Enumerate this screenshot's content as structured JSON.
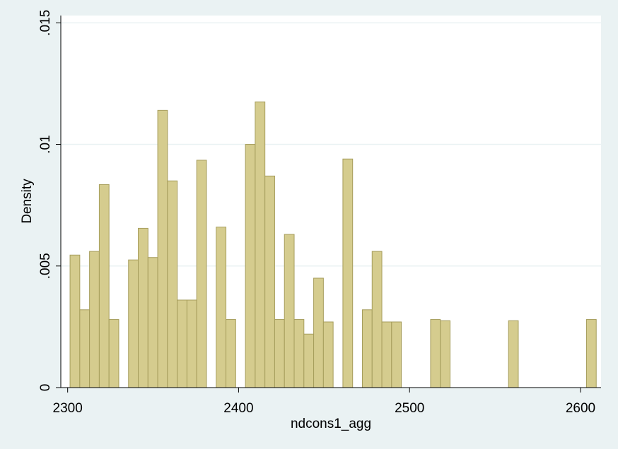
{
  "chart_data": {
    "type": "bar",
    "xlabel": "ndcons1_agg",
    "ylabel": "Density",
    "xlim": [
      2296,
      2612
    ],
    "ylim": [
      0,
      0.0153
    ],
    "grid": true,
    "x_ticks": [
      {
        "value": 2300,
        "label": "2300"
      },
      {
        "value": 2400,
        "label": "2400"
      },
      {
        "value": 2500,
        "label": "2500"
      },
      {
        "value": 2600,
        "label": "2600"
      }
    ],
    "y_ticks": [
      {
        "value": 0,
        "label": "0"
      },
      {
        "value": 0.005,
        "label": ".005"
      },
      {
        "value": 0.01,
        "label": ".01"
      },
      {
        "value": 0.015,
        "label": ".015"
      }
    ],
    "bin_width": 5.7,
    "bins": [
      {
        "start": 2301.4,
        "density": 0.00545
      },
      {
        "start": 2307.1,
        "density": 0.0032
      },
      {
        "start": 2312.8,
        "density": 0.0056
      },
      {
        "start": 2318.5,
        "density": 0.00835
      },
      {
        "start": 2324.2,
        "density": 0.0028
      },
      {
        "start": 2335.6,
        "density": 0.00525
      },
      {
        "start": 2341.3,
        "density": 0.00655
      },
      {
        "start": 2347.0,
        "density": 0.00535
      },
      {
        "start": 2352.7,
        "density": 0.0114
      },
      {
        "start": 2358.4,
        "density": 0.0085
      },
      {
        "start": 2364.1,
        "density": 0.0036
      },
      {
        "start": 2369.8,
        "density": 0.0036
      },
      {
        "start": 2375.5,
        "density": 0.00935
      },
      {
        "start": 2386.9,
        "density": 0.0066
      },
      {
        "start": 2392.6,
        "density": 0.0028
      },
      {
        "start": 2404.0,
        "density": 0.01
      },
      {
        "start": 2409.7,
        "density": 0.01175
      },
      {
        "start": 2415.4,
        "density": 0.0087
      },
      {
        "start": 2421.1,
        "density": 0.0028
      },
      {
        "start": 2426.8,
        "density": 0.0063
      },
      {
        "start": 2432.5,
        "density": 0.0028
      },
      {
        "start": 2438.2,
        "density": 0.0022
      },
      {
        "start": 2443.9,
        "density": 0.0045
      },
      {
        "start": 2449.6,
        "density": 0.0027
      },
      {
        "start": 2461.0,
        "density": 0.0094
      },
      {
        "start": 2472.4,
        "density": 0.0032
      },
      {
        "start": 2478.1,
        "density": 0.0056
      },
      {
        "start": 2483.8,
        "density": 0.0027
      },
      {
        "start": 2489.5,
        "density": 0.0027
      },
      {
        "start": 2512.3,
        "density": 0.0028
      },
      {
        "start": 2518.0,
        "density": 0.00275
      },
      {
        "start": 2557.9,
        "density": 0.00275
      },
      {
        "start": 2603.5,
        "density": 0.0028
      }
    ],
    "colors": {
      "bar_fill": "#d5cc8e",
      "bar_stroke": "#a69d5c",
      "plot_background": "#ffffff",
      "outer_background": "#eaf2f3",
      "grid": "#eaf2f3"
    }
  }
}
